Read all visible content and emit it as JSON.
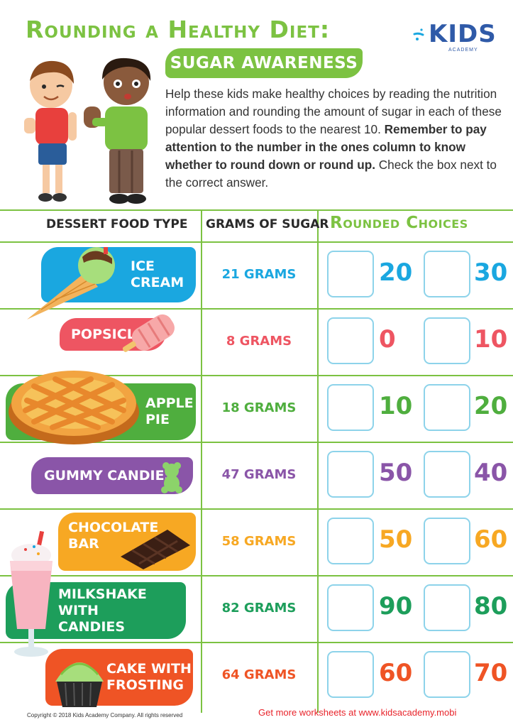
{
  "header": {
    "title": "Rounding a Healthy Diet:",
    "subtitle": "SUGAR AWARENESS",
    "logo_text": "KIDS",
    "logo_subtext": "ACADEMY"
  },
  "intro": {
    "text_plain": "Help these kids make healthy choices by reading the nutrition information and rounding the amount of sugar in each of these popular dessert foods to the nearest 10.",
    "text_bold": "Remember to pay attention to the number in the ones column to know whether to round down or round up.",
    "text_end": "Check the box next to the correct answer."
  },
  "table": {
    "headers": {
      "food": "DESSERT FOOD TYPE",
      "grams": "GRAMS OF SUGAR",
      "choices": "Rounded Choices"
    },
    "rows": [
      {
        "food": "ICE\nCREAM",
        "grams": "21 GRAMS",
        "choice_a": "20",
        "choice_b": "30",
        "color": "#1aa7e0",
        "icon": "ice-cream-icon"
      },
      {
        "food": "POPSICLE",
        "grams": "8 GRAMS",
        "choice_a": "0",
        "choice_b": "10",
        "color": "#ee5562",
        "icon": "popsicle-icon"
      },
      {
        "food": "APPLE\nPIE",
        "grams": "18 GRAMS",
        "choice_a": "10",
        "choice_b": "20",
        "color": "#4fae3e",
        "icon": "apple-pie-icon"
      },
      {
        "food": "GUMMY CANDIES",
        "grams": "47 GRAMS",
        "choice_a": "50",
        "choice_b": "40",
        "color": "#8a55a8",
        "icon": "gummy-bear-icon"
      },
      {
        "food": "CHOCOLATE\nBAR",
        "grams": "58 GRAMS",
        "choice_a": "50",
        "choice_b": "60",
        "color": "#f7a823",
        "icon": "chocolate-bar-icon"
      },
      {
        "food": "MILKSHAKE WITH\nCANDIES",
        "grams": "82 GRAMS",
        "choice_a": "90",
        "choice_b": "80",
        "color": "#1d9e5b",
        "icon": "milkshake-icon"
      },
      {
        "food": "CAKE WITH\nFROSTING",
        "grams": "64 GRAMS",
        "choice_a": "60",
        "choice_b": "70",
        "color": "#ef5425",
        "icon": "cupcake-icon"
      }
    ]
  },
  "footer": {
    "copyright": "Copyright © 2018 Kids Academy Company. All rights reserved",
    "link_text": "Get more worksheets at www.kidsacademy.mobi"
  },
  "colors": {
    "accent_green": "#7cc242",
    "checkbox_border": "#8dd3ea",
    "logo_blue": "#2f5aa8",
    "footer_red": "#e8232a"
  }
}
